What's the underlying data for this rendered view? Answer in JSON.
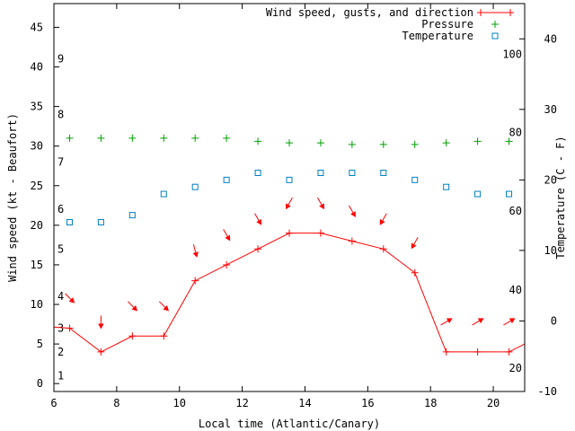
{
  "chart_data": {
    "type": "line",
    "xlabel": "Local time (Atlantic/Canary)",
    "ylabel": "Wind speed (kt - Beaufort)",
    "y2label": "Temperature (C - F)",
    "xlim": [
      6,
      21
    ],
    "ylim": [
      -1,
      48
    ],
    "y2lim": [
      -10,
      45
    ],
    "x_ticks": [
      6,
      8,
      10,
      12,
      14,
      16,
      18,
      20
    ],
    "y_ticks": [
      0,
      5,
      10,
      15,
      20,
      25,
      30,
      35,
      40,
      45
    ],
    "y2_ticks": [
      -10,
      0,
      10,
      20,
      30,
      40
    ],
    "beaufort_labels": [
      {
        "label": "1",
        "kt": 1
      },
      {
        "label": "2",
        "kt": 4
      },
      {
        "label": "3",
        "kt": 7
      },
      {
        "label": "4",
        "kt": 11
      },
      {
        "label": "5",
        "kt": 17
      },
      {
        "label": "6",
        "kt": 22
      },
      {
        "label": "7",
        "kt": 28
      },
      {
        "label": "8",
        "kt": 34
      },
      {
        "label": "9",
        "kt": 41
      }
    ],
    "fahrenheit_labels": [
      {
        "label": "20",
        "celsius": -6.7
      },
      {
        "label": "40",
        "celsius": 4.4
      },
      {
        "label": "60",
        "celsius": 15.6
      },
      {
        "label": "80",
        "celsius": 26.7
      },
      {
        "label": "100",
        "celsius": 37.8
      }
    ],
    "legend": {
      "position": "top-right",
      "entries": [
        "Wind speed, gusts, and direction",
        "Pressure",
        "Temperature"
      ]
    },
    "series": [
      {
        "name": "Wind speed, gusts, and direction",
        "color": "#ff0000",
        "marker": "plus",
        "x": [
          6.5,
          7.5,
          8.5,
          9.5,
          10.5,
          11.5,
          12.5,
          13.5,
          14.5,
          15.5,
          16.5,
          17.5,
          18.5,
          19.5,
          20.5
        ],
        "values": [
          7,
          4,
          6,
          6,
          13,
          15,
          17,
          19,
          19,
          18,
          17,
          14,
          4,
          4,
          4
        ],
        "direction_deg": [
          315,
          0,
          315,
          315,
          345,
          330,
          330,
          30,
          330,
          330,
          30,
          30,
          240,
          240,
          240
        ]
      },
      {
        "name": "Pressure",
        "color": "#00a000",
        "marker": "plus",
        "axis": "left",
        "x": [
          6.5,
          7.5,
          8.5,
          9.5,
          10.5,
          11.5,
          12.5,
          13.5,
          14.5,
          15.5,
          16.5,
          17.5,
          18.5,
          19.5,
          20.5
        ],
        "values": [
          31,
          31,
          31,
          31,
          31,
          31,
          30.6,
          30.4,
          30.4,
          30.2,
          30.2,
          30.2,
          30.4,
          30.6,
          30.6
        ]
      },
      {
        "name": "Temperature",
        "color": "#0080c0",
        "marker": "square",
        "axis": "right",
        "x": [
          6.5,
          7.5,
          8.5,
          9.5,
          10.5,
          11.5,
          12.5,
          13.5,
          14.5,
          15.5,
          16.5,
          17.5,
          18.5,
          19.5,
          20.5
        ],
        "values": [
          14,
          14,
          15,
          18,
          19,
          20,
          21,
          20,
          21,
          21,
          21,
          20,
          19,
          18,
          18
        ]
      }
    ]
  }
}
